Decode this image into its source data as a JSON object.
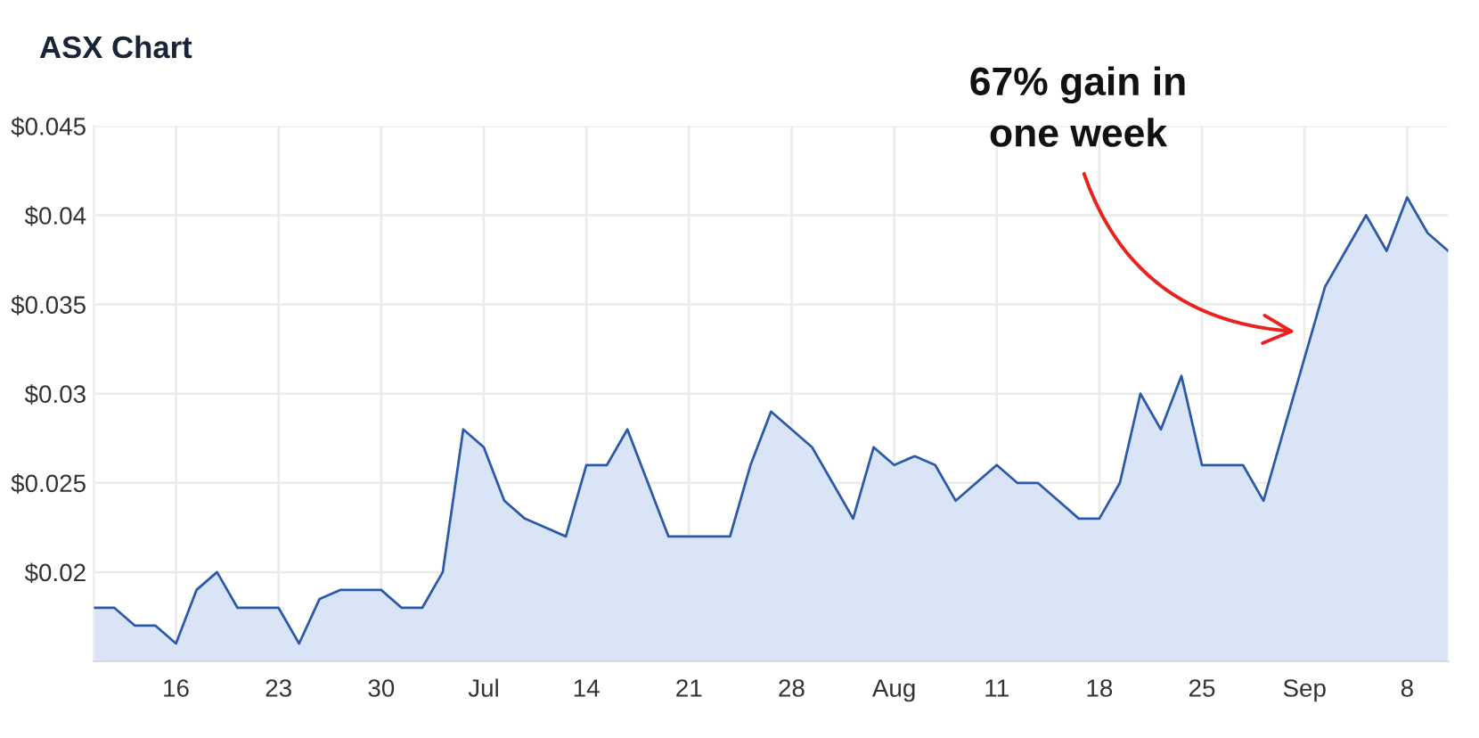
{
  "chart_data": {
    "type": "area",
    "title": "ASX Chart",
    "categories": [
      null,
      null,
      null,
      null,
      "16",
      null,
      null,
      null,
      null,
      "23",
      null,
      null,
      null,
      null,
      "30",
      null,
      null,
      null,
      null,
      "Jul",
      null,
      null,
      null,
      null,
      "14",
      null,
      null,
      null,
      null,
      "21",
      null,
      null,
      null,
      null,
      "28",
      null,
      null,
      null,
      null,
      "Aug",
      null,
      null,
      null,
      null,
      "11",
      null,
      null,
      null,
      null,
      "18",
      null,
      null,
      null,
      null,
      "25",
      null,
      null,
      null,
      null,
      "Sep",
      null,
      null,
      null,
      null,
      "8",
      null,
      null
    ],
    "values": [
      0.018,
      0.018,
      0.017,
      0.017,
      0.016,
      0.019,
      0.02,
      0.018,
      0.018,
      0.018,
      0.016,
      0.0185,
      0.019,
      0.019,
      0.019,
      0.018,
      0.018,
      0.02,
      0.028,
      0.027,
      0.024,
      0.023,
      0.0225,
      0.022,
      0.026,
      0.026,
      0.028,
      0.025,
      0.022,
      0.022,
      0.022,
      0.022,
      0.026,
      0.029,
      0.028,
      0.027,
      0.025,
      0.023,
      0.027,
      0.026,
      0.0265,
      0.026,
      0.024,
      0.025,
      0.026,
      0.025,
      0.025,
      0.024,
      0.023,
      0.023,
      0.025,
      0.03,
      0.028,
      0.031,
      0.026,
      0.026,
      0.026,
      0.024,
      0.028,
      0.032,
      0.036,
      0.038,
      0.04,
      0.038,
      0.041,
      0.039,
      0.038
    ],
    "color": "#2d5aa8",
    "ylim": [
      0.015,
      0.045
    ],
    "yticks": [
      {
        "value": 0.02,
        "label": "$0.02"
      },
      {
        "value": 0.025,
        "label": "$0.025"
      },
      {
        "value": 0.03,
        "label": "$0.03"
      },
      {
        "value": 0.035,
        "label": "$0.035"
      },
      {
        "value": 0.04,
        "label": "$0.04"
      },
      {
        "value": 0.045,
        "label": "$0.045"
      }
    ],
    "grid": true,
    "annotations": [
      "67% gain in\none week"
    ]
  }
}
